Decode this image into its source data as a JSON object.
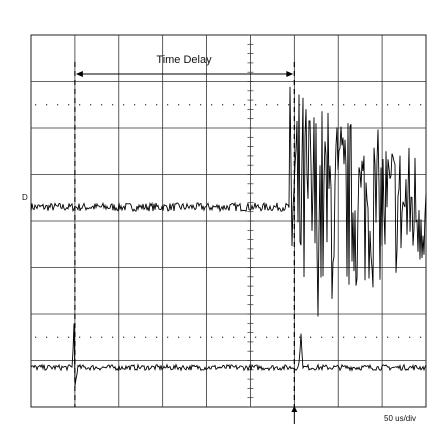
{
  "chart_data": {
    "type": "line",
    "title": "",
    "annotation": "Time Delay",
    "timebase": "50 us/div",
    "channel_marker": "D",
    "divisions": {
      "x": 9,
      "y": 8
    },
    "grid": true,
    "series": [
      {
        "description_hidden": "",
        "baseline_div": 4.3,
        "noise_div": 0.03,
        "burst_start_div": 5.9,
        "burst_peak_div": 2.2,
        "burst_end_div": 9.0
      },
      {
        "baseline_div": 0.85,
        "noise_div": 0.02,
        "spike_at_div": 1.0,
        "spike_height_div": 1.4,
        "spike2_at_div": 6.15
      }
    ],
    "delay_start_div": 1.0,
    "delay_end_div": 6.0
  }
}
